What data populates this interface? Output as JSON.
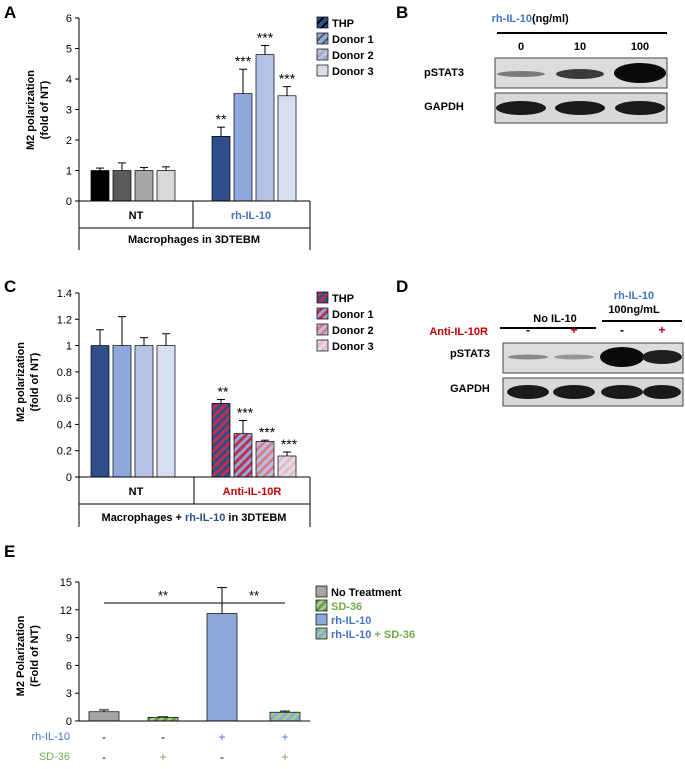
{
  "colors": {
    "thp": "#2e4f8c",
    "donor1": "#8fa8dc",
    "donor2": "#b3c3e6",
    "donor3": "#d6dff2",
    "nt_thp": "#000000",
    "nt_d1": "#5a5a5a",
    "nt_d2": "#a6a6a6",
    "nt_d3": "#d9d9d9",
    "blue_text": "#4472c4",
    "red_text": "#c00000",
    "green_text": "#70ad47",
    "hatch_red": "#c0304a",
    "gray_fill": "#a6a6a6",
    "green_fill": "#a9d18e"
  },
  "panel_labels": {
    "a": "A",
    "b": "B",
    "c": "C",
    "d": "D",
    "e": "E"
  },
  "chart_data": [
    {
      "id": "A",
      "type": "bar",
      "title": "",
      "ylabel_line1": "M2 polarization",
      "ylabel_line2": "(fold of NT)",
      "ylim": [
        0,
        6
      ],
      "yticks": [
        "0",
        "1",
        "2",
        "3",
        "4",
        "5",
        "6"
      ],
      "groups": [
        "NT",
        "rh-IL-10"
      ],
      "xtitle": "Macrophages in 3DTEBM",
      "legend": [
        "THP",
        "Donor 1",
        "Donor 2",
        "Donor 3"
      ],
      "series": [
        {
          "name": "THP",
          "values": [
            1.0,
            2.12
          ],
          "errors": [
            0.08,
            0.3
          ]
        },
        {
          "name": "Donor 1",
          "values": [
            1.0,
            3.52
          ],
          "errors": [
            0.25,
            0.8
          ]
        },
        {
          "name": "Donor 2",
          "values": [
            1.0,
            4.8
          ],
          "errors": [
            0.1,
            0.3
          ]
        },
        {
          "name": "Donor 3",
          "values": [
            1.0,
            3.45
          ],
          "errors": [
            0.12,
            0.3
          ]
        }
      ],
      "annotations": [
        "",
        "",
        "",
        "",
        "**",
        "***",
        "***",
        "***"
      ]
    },
    {
      "id": "C",
      "type": "bar",
      "title": "",
      "ylabel_line1": "M2 polarization",
      "ylabel_line2": "(fold of NT)",
      "ylim": [
        0,
        1.4
      ],
      "yticks": [
        "0",
        "0.2",
        "0.4",
        "0.6",
        "0.8",
        "1",
        "1.2",
        "1.4"
      ],
      "groups": [
        "NT",
        "Anti-IL-10R"
      ],
      "xtitle_pre": "Macrophages + ",
      "xtitle_mid": "rh-IL-10",
      "xtitle_post": " in 3DTEBM",
      "legend": [
        "THP",
        "Donor 1",
        "Donor 2",
        "Donor 3"
      ],
      "series": [
        {
          "name": "THP",
          "values": [
            1.0,
            0.56
          ],
          "errors": [
            0.12,
            0.03
          ]
        },
        {
          "name": "Donor 1",
          "values": [
            1.0,
            0.33
          ],
          "errors": [
            0.22,
            0.1
          ]
        },
        {
          "name": "Donor 2",
          "values": [
            1.0,
            0.27
          ],
          "errors": [
            0.06,
            0.01
          ]
        },
        {
          "name": "Donor 3",
          "values": [
            1.0,
            0.16
          ],
          "errors": [
            0.09,
            0.03
          ]
        }
      ],
      "annotations": [
        "",
        "",
        "",
        "",
        "**",
        "***",
        "***",
        "***"
      ]
    },
    {
      "id": "E",
      "type": "bar",
      "title": "",
      "ylabel_line1": "M2 Polarization",
      "ylabel_line2": "(Fold of NT)",
      "ylim": [
        0,
        15
      ],
      "yticks": [
        "0",
        "3",
        "6",
        "9",
        "12",
        "15"
      ],
      "categories": [
        "No Treatment",
        "SD-36",
        "rh-IL-10",
        "rh-IL-10 + SD-36"
      ],
      "values": [
        1.0,
        0.4,
        11.6,
        0.95
      ],
      "errors": [
        0.2,
        0.05,
        2.8,
        0.12
      ],
      "legend": [
        "No Treatment",
        "SD-36",
        "rh-IL-10",
        "rh-IL-10 + SD-36"
      ],
      "legend_last_a": "rh-IL-10",
      "legend_last_b": " + SD-36",
      "row_labels": [
        "rh-IL-10",
        "SD-36"
      ],
      "row_rhil10": [
        "-",
        "-",
        "+",
        "+"
      ],
      "row_sd36": [
        "-",
        "+",
        "-",
        "+"
      ],
      "significance": [
        "**",
        "**"
      ]
    }
  ],
  "blot_b": {
    "header": "rh-IL-10",
    "unit": " (ng/ml)",
    "lanes": [
      "0",
      "10",
      "100"
    ],
    "rows": [
      "pSTAT3",
      "GAPDH"
    ]
  },
  "blot_d": {
    "group1": "No IL-10",
    "group2_line1": "rh-IL-10",
    "group2_line2": "100ng/mL",
    "treat_label": "Anti-IL-10R",
    "lanes": [
      "-",
      "+",
      "-",
      "+"
    ],
    "rows": [
      "pSTAT3",
      "GAPDH"
    ]
  }
}
